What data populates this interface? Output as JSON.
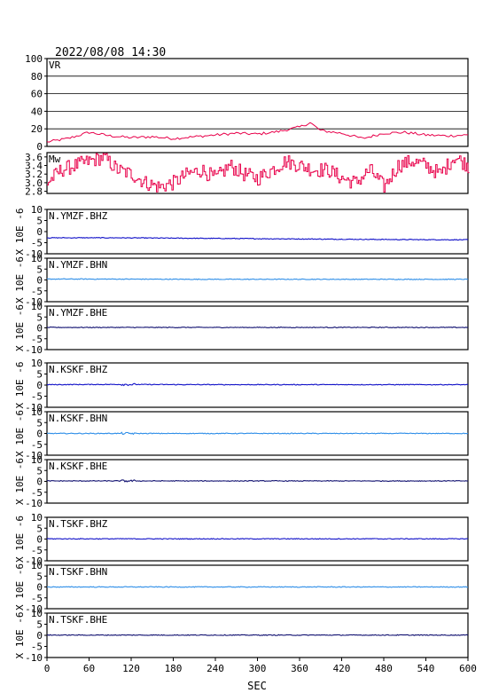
{
  "header": {
    "timestamp": "2022/08/08  14:30"
  },
  "xaxis_label": "SEC",
  "ylabel_wave": "X 10E -6",
  "colors": {
    "vr": "#e8004a",
    "mw": "#e8004a",
    "bhz": "#1010c8",
    "bhn": "#2e8ee8",
    "bhe": "#101070",
    "frame": "#000000"
  },
  "chart_data": [
    {
      "type": "line",
      "label": "VR",
      "ylim": [
        0,
        100
      ],
      "yticks": [
        "0",
        "20",
        "40",
        "60",
        "80",
        "100"
      ],
      "x": [
        0,
        30,
        60,
        90,
        120,
        150,
        180,
        210,
        240,
        270,
        300,
        330,
        360,
        375,
        390,
        420,
        450,
        480,
        510,
        540,
        570,
        600
      ],
      "values": [
        5,
        9,
        16,
        12,
        10,
        11,
        9,
        11,
        13,
        15,
        14,
        17,
        22,
        27,
        18,
        15,
        9,
        15,
        16,
        13,
        12,
        13
      ]
    },
    {
      "type": "line",
      "label": "Mw",
      "ylim": [
        2.75,
        3.7
      ],
      "yticks": [
        "2.8",
        "3.0",
        "3.2",
        "3.4",
        "3.6"
      ],
      "x": [
        0,
        20,
        40,
        60,
        80,
        100,
        120,
        140,
        160,
        180,
        200,
        220,
        240,
        260,
        280,
        300,
        320,
        340,
        360,
        380,
        400,
        420,
        440,
        460,
        480,
        500,
        520,
        540,
        560,
        580,
        600
      ],
      "values": [
        3.0,
        3.3,
        3.4,
        3.5,
        3.6,
        3.3,
        3.2,
        3.0,
        2.9,
        3.0,
        3.2,
        3.3,
        3.1,
        3.4,
        3.2,
        3.1,
        3.3,
        3.5,
        3.4,
        3.3,
        3.3,
        3.1,
        3.0,
        3.3,
        2.9,
        3.4,
        3.5,
        3.4,
        3.2,
        3.6,
        3.4
      ]
    },
    {
      "type": "line",
      "label": "N.YMZF.BHZ",
      "component": "bhz",
      "ylim": [
        -10,
        10
      ],
      "yticks": [
        "-10",
        "-5",
        "0",
        "5",
        "10"
      ],
      "x": [
        0,
        100,
        200,
        300,
        400,
        500,
        600
      ],
      "values": [
        -2.8,
        -2.8,
        -3.0,
        -3.2,
        -3.4,
        -3.6,
        -3.7
      ]
    },
    {
      "type": "line",
      "label": "N.YMZF.BHN",
      "component": "bhn",
      "ylim": [
        -10,
        10
      ],
      "yticks": [
        "-10",
        "-5",
        "0",
        "5",
        "10"
      ],
      "x": [
        0,
        100,
        200,
        300,
        400,
        500,
        600
      ],
      "values": [
        0.4,
        0.4,
        0.3,
        0.3,
        0.3,
        0.3,
        0.3
      ]
    },
    {
      "type": "line",
      "label": "N.YMZF.BHE",
      "component": "bhe",
      "ylim": [
        -10,
        10
      ],
      "yticks": [
        "-10",
        "-5",
        "0",
        "5",
        "10"
      ],
      "x": [
        0,
        100,
        200,
        300,
        400,
        500,
        600
      ],
      "values": [
        0.2,
        0.2,
        0.2,
        0.2,
        0.2,
        0.2,
        0.2
      ]
    },
    {
      "type": "line",
      "label": "N.KSKF.BHZ",
      "component": "bhz",
      "ylim": [
        -10,
        10
      ],
      "yticks": [
        "-10",
        "-5",
        "0",
        "5",
        "10"
      ],
      "x": [
        0,
        100,
        200,
        300,
        400,
        500,
        600
      ],
      "values": [
        0.2,
        0.3,
        0.2,
        0.2,
        0.2,
        0.2,
        0.2
      ]
    },
    {
      "type": "line",
      "label": "N.KSKF.BHN",
      "component": "bhn",
      "ylim": [
        -10,
        10
      ],
      "yticks": [
        "-10",
        "-5",
        "0",
        "5",
        "10"
      ],
      "x": [
        0,
        100,
        200,
        300,
        400,
        500,
        600
      ],
      "values": [
        0.0,
        0.0,
        0.0,
        0.0,
        0.0,
        0.0,
        0.0
      ]
    },
    {
      "type": "line",
      "label": "N.KSKF.BHE",
      "component": "bhe",
      "ylim": [
        -10,
        10
      ],
      "yticks": [
        "-10",
        "-5",
        "0",
        "5",
        "10"
      ],
      "x": [
        0,
        100,
        200,
        300,
        400,
        500,
        600
      ],
      "values": [
        0.2,
        0.2,
        0.2,
        0.2,
        0.2,
        0.2,
        0.2
      ]
    },
    {
      "type": "line",
      "label": "N.TSKF.BHZ",
      "component": "bhz",
      "ylim": [
        -10,
        10
      ],
      "yticks": [
        "-10",
        "-5",
        "0",
        "5",
        "10"
      ],
      "x": [
        0,
        100,
        200,
        300,
        400,
        500,
        600
      ],
      "values": [
        0.1,
        0.1,
        0.1,
        0.1,
        0.1,
        0.1,
        0.1
      ]
    },
    {
      "type": "line",
      "label": "N.TSKF.BHN",
      "component": "bhn",
      "ylim": [
        -10,
        10
      ],
      "yticks": [
        "-10",
        "-5",
        "0",
        "5",
        "10"
      ],
      "x": [
        0,
        100,
        200,
        300,
        400,
        500,
        600
      ],
      "values": [
        0.0,
        0.0,
        0.0,
        0.0,
        0.0,
        0.0,
        0.0
      ]
    },
    {
      "type": "line",
      "label": "N.TSKF.BHE",
      "component": "bhe",
      "ylim": [
        -10,
        10
      ],
      "yticks": [
        "-10",
        "-5",
        "0",
        "5",
        "10"
      ],
      "x": [
        0,
        100,
        200,
        300,
        400,
        500,
        600
      ],
      "values": [
        0.1,
        0.1,
        0.1,
        0.1,
        0.1,
        0.1,
        0.1
      ]
    }
  ],
  "xaxis": {
    "xlim": [
      0,
      600
    ],
    "ticks": [
      "0",
      "60",
      "120",
      "180",
      "240",
      "300",
      "360",
      "420",
      "480",
      "540",
      "600"
    ]
  }
}
